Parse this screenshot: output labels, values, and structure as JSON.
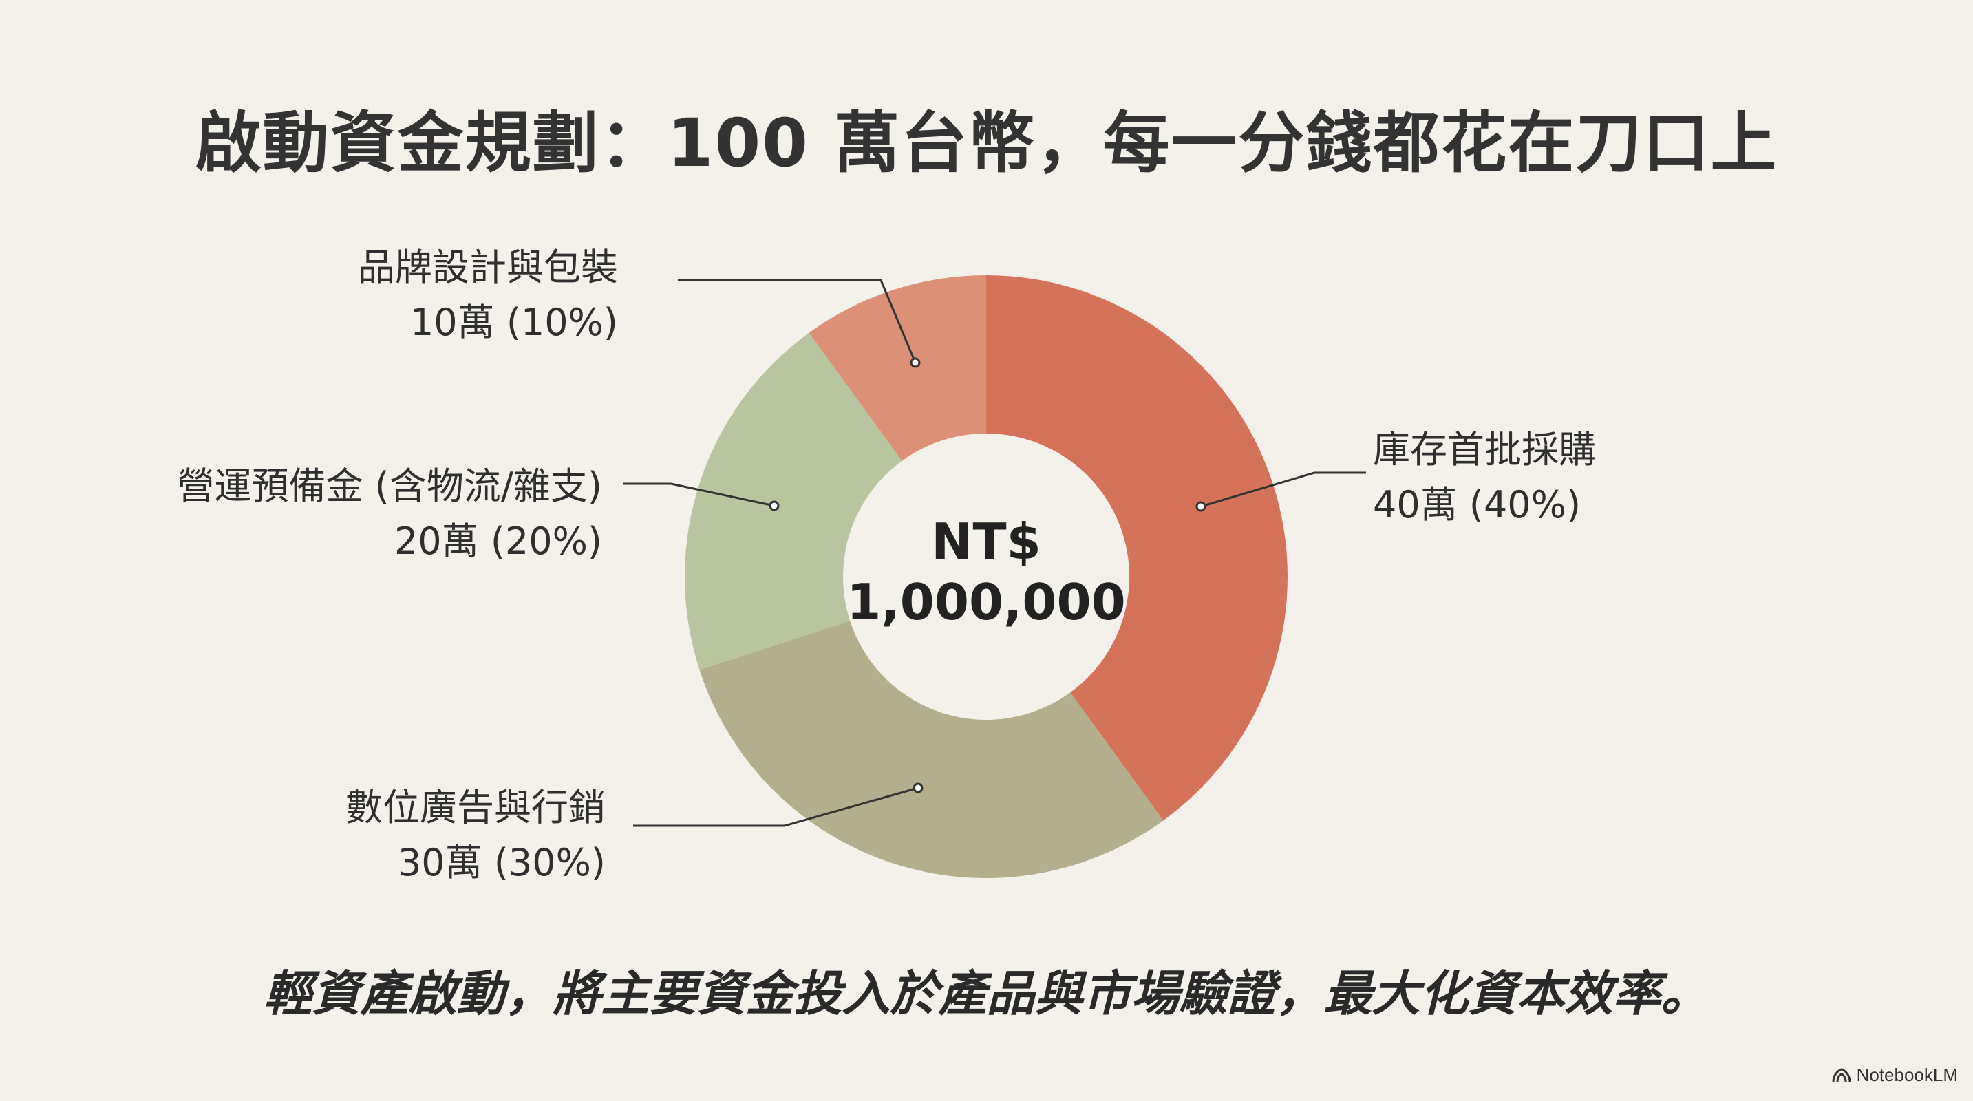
{
  "title": "啟動資金規劃：100 萬台幣，每一分錢都花在刀口上",
  "footer": "輕資產啟動，將主要資金投入於產品與市場驗證，最大化資本效率。",
  "brand": {
    "label": "NotebookLM",
    "icon": "notebooklm-logo-icon"
  },
  "chart_data": {
    "type": "pie",
    "donut": true,
    "center_label": [
      "NT$",
      "1,000,000"
    ],
    "unit": "萬",
    "slices": [
      {
        "name": "庫存首批採購",
        "value": 40,
        "percent": 40,
        "value_text": "40萬 (40%)",
        "color": "#d4725a"
      },
      {
        "name": "數位廣告與行銷",
        "value": 30,
        "percent": 30,
        "value_text": "30萬 (30%)",
        "color": "#b3ae8c"
      },
      {
        "name": "營運預備金 (含物流/雜支)",
        "value": 20,
        "percent": 20,
        "value_text": "20萬 (20%)",
        "color": "#b8c59f"
      },
      {
        "name": "品牌設計與包裝",
        "value": 10,
        "percent": 10,
        "value_text": "10萬 (10%)",
        "color": "#dc9076"
      }
    ]
  }
}
